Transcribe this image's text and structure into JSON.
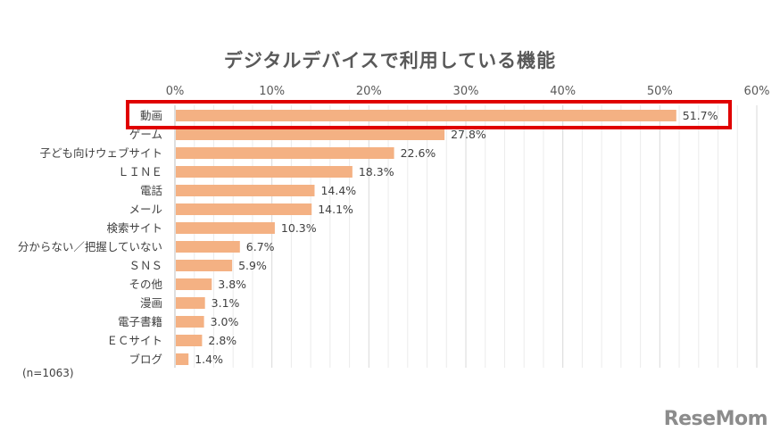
{
  "chart_data": {
    "type": "bar",
    "orientation": "horizontal",
    "title": "デジタルデバイスで利用している機能",
    "categories": [
      "動画",
      "ゲーム",
      "子ども向けウェブサイト",
      "ＬＩＮＥ",
      "電話",
      "メール",
      "検索サイト",
      "分からない／把握していない",
      "ＳＮＳ",
      "その他",
      "漫画",
      "電子書籍",
      "ＥＣサイト",
      "ブログ"
    ],
    "values": [
      51.7,
      27.8,
      22.6,
      18.3,
      14.4,
      14.1,
      10.3,
      6.7,
      5.9,
      3.8,
      3.1,
      3.0,
      2.8,
      1.4
    ],
    "value_labels": [
      "51.7%",
      "27.8%",
      "22.6%",
      "18.3%",
      "14.4%",
      "14.1%",
      "10.3%",
      "6.7%",
      "5.9%",
      "3.8%",
      "3.1%",
      "3.0%",
      "2.8%",
      "1.4%"
    ],
    "xlim": [
      0,
      60
    ],
    "x_ticks": [
      0,
      10,
      20,
      30,
      40,
      50,
      60
    ],
    "x_tick_labels": [
      "0%",
      "10%",
      "20%",
      "30%",
      "40%",
      "50%",
      "60%"
    ],
    "axis_position": "top",
    "grid": true,
    "bar_color": "#f4b183",
    "highlight_category": "動画",
    "highlight_color": "#e00000"
  },
  "note": "(n=1063)",
  "logo": "ReseMom"
}
